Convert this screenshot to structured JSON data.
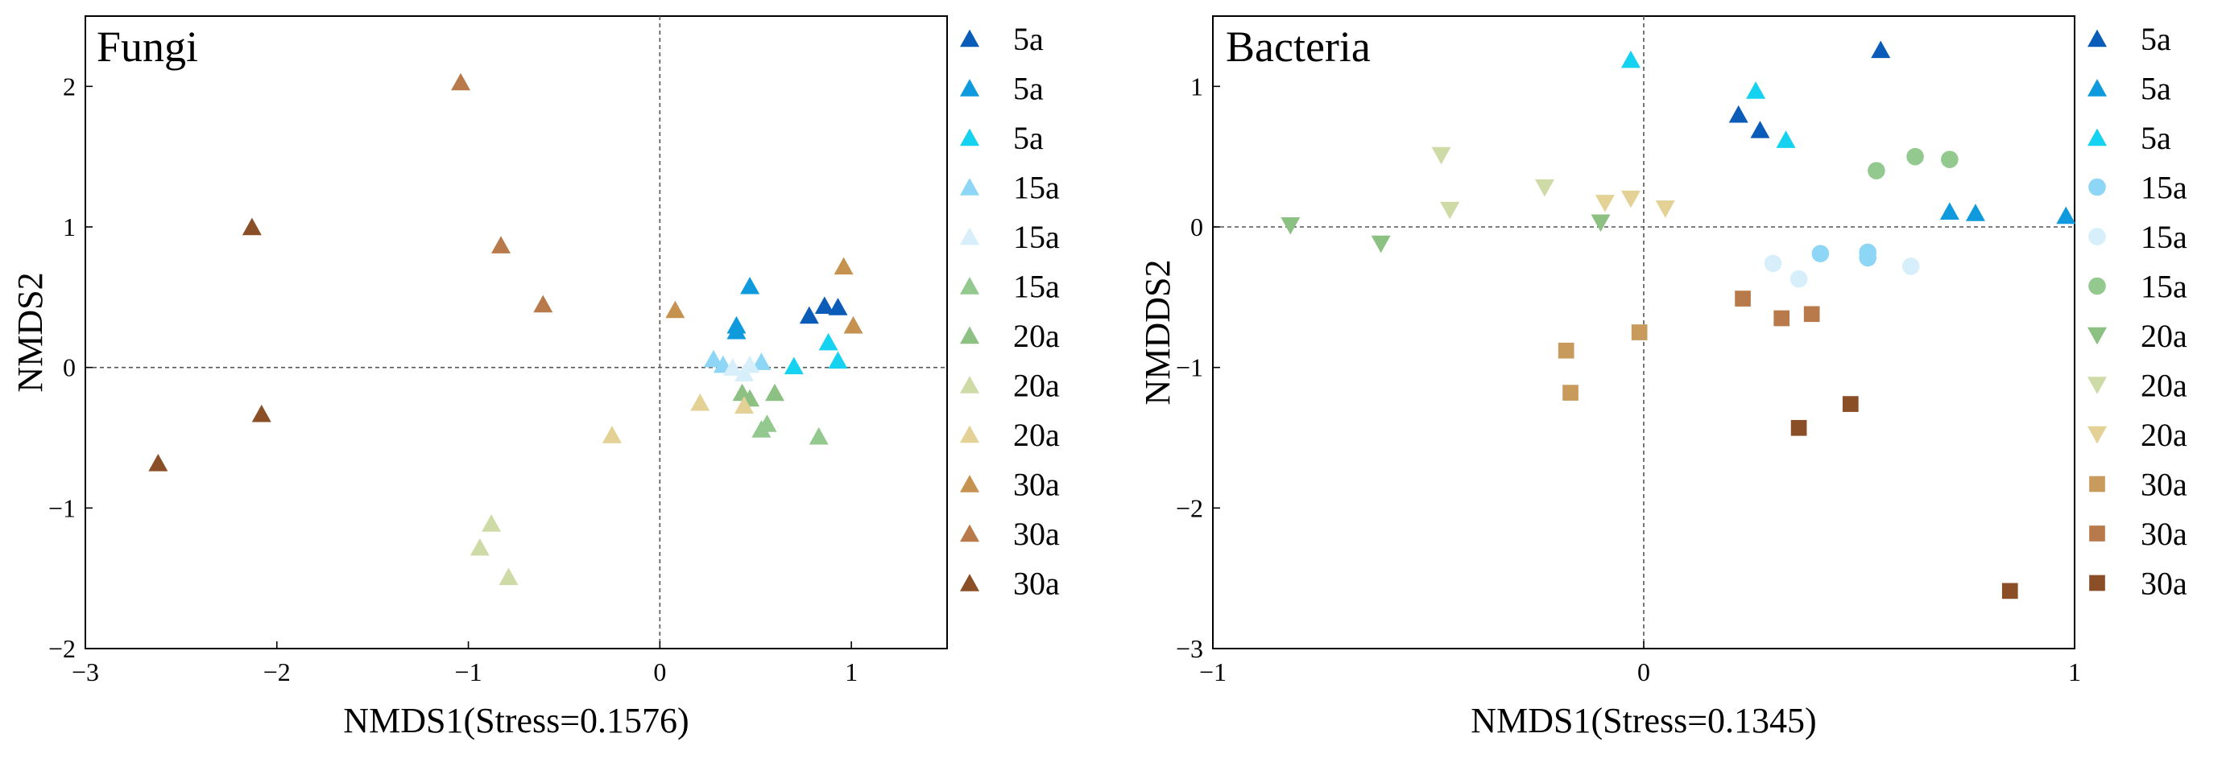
{
  "chart_data": [
    {
      "type": "scatter",
      "title": "Fungi",
      "xlabel": "NMDS1(Stress=0.1576)",
      "ylabel": "NMDS2",
      "xlim": [
        -3,
        1.5
      ],
      "ylim": [
        -2,
        2.5
      ],
      "xticks": [
        -3,
        -2,
        -1,
        0,
        1
      ],
      "yticks": [
        -2,
        -1,
        0,
        1,
        2
      ],
      "xtick_labels": [
        "−3",
        "−2",
        "−1",
        "0",
        "1"
      ],
      "ytick_labels": [
        "−2",
        "−1",
        "0",
        "1",
        "2"
      ],
      "zero_lines": true,
      "legend_position": "right outside",
      "series": [
        {
          "name": "5a",
          "marker": "triangle-up",
          "color": "#0B5CB8",
          "points": [
            [
              0.78,
              0.37
            ],
            [
              0.86,
              0.44
            ],
            [
              0.93,
              0.43
            ]
          ]
        },
        {
          "name": "5a",
          "marker": "triangle-up",
          "color": "#0E9ADC",
          "points": [
            [
              0.4,
              0.3
            ],
            [
              0.4,
              0.26
            ],
            [
              0.47,
              0.58
            ]
          ]
        },
        {
          "name": "5a",
          "marker": "triangle-up",
          "color": "#14D2F0",
          "points": [
            [
              0.7,
              0.01
            ],
            [
              0.88,
              0.18
            ],
            [
              0.93,
              0.05
            ]
          ]
        },
        {
          "name": "15a",
          "marker": "triangle-up",
          "color": "#8ED6F5",
          "points": [
            [
              0.28,
              0.06
            ],
            [
              0.33,
              0.02
            ],
            [
              0.53,
              0.04
            ]
          ]
        },
        {
          "name": "15a",
          "marker": "triangle-up",
          "color": "#D6EFFA",
          "points": [
            [
              0.38,
              0.0
            ],
            [
              0.44,
              -0.04
            ],
            [
              0.47,
              0.02
            ]
          ]
        },
        {
          "name": "15a",
          "marker": "triangle-up",
          "color": "#93C98F",
          "points": [
            [
              0.53,
              -0.44
            ],
            [
              0.56,
              -0.4
            ],
            [
              0.83,
              -0.49
            ]
          ]
        },
        {
          "name": "20a",
          "marker": "triangle-up",
          "color": "#8DC083",
          "points": [
            [
              0.43,
              -0.18
            ],
            [
              0.47,
              -0.22
            ],
            [
              0.6,
              -0.18
            ]
          ]
        },
        {
          "name": "20a",
          "marker": "triangle-up",
          "color": "#CFDBA6",
          "points": [
            [
              -0.94,
              -1.28
            ],
            [
              -0.88,
              -1.11
            ],
            [
              -0.79,
              -1.49
            ]
          ]
        },
        {
          "name": "20a",
          "marker": "triangle-up",
          "color": "#E3D195",
          "points": [
            [
              -0.25,
              -0.48
            ],
            [
              0.21,
              -0.25
            ],
            [
              0.44,
              -0.27
            ]
          ]
        },
        {
          "name": "30a",
          "marker": "triangle-up",
          "color": "#C59250",
          "points": [
            [
              0.08,
              0.41
            ],
            [
              0.96,
              0.72
            ],
            [
              1.01,
              0.3
            ]
          ]
        },
        {
          "name": "30a",
          "marker": "triangle-up",
          "color": "#B97A4B",
          "points": [
            [
              -1.04,
              2.03
            ],
            [
              -0.83,
              0.87
            ],
            [
              -0.61,
              0.45
            ]
          ]
        },
        {
          "name": "30a",
          "marker": "triangle-up",
          "color": "#8A4F27",
          "points": [
            [
              -2.62,
              -0.68
            ],
            [
              -2.13,
              1.0
            ],
            [
              -2.08,
              -0.33
            ]
          ]
        }
      ]
    },
    {
      "type": "scatter",
      "title": "Bacteria",
      "xlabel": "NMDS1(Stress=0.1345)",
      "ylabel": "NMDDS2",
      "xlim": [
        -1,
        1
      ],
      "ylim": [
        -3,
        1.5
      ],
      "xticks": [
        -1,
        0,
        1
      ],
      "yticks": [
        -3,
        -2,
        -1,
        0,
        1
      ],
      "xtick_labels": [
        "−1",
        "0",
        "1"
      ],
      "ytick_labels": [
        "−3",
        "−2",
        "−1",
        "0",
        "1"
      ],
      "zero_lines": true,
      "legend_position": "right outside",
      "series": [
        {
          "name": "5a",
          "marker": "triangle-up",
          "color": "#0B5CB8",
          "points": [
            [
              0.22,
              0.8
            ],
            [
              0.27,
              0.69
            ],
            [
              0.55,
              1.26
            ]
          ]
        },
        {
          "name": "5a",
          "marker": "triangle-up",
          "color": "#0E9ADC",
          "points": [
            [
              0.71,
              0.11
            ],
            [
              0.77,
              0.1
            ],
            [
              0.98,
              0.08
            ]
          ]
        },
        {
          "name": "5a",
          "marker": "triangle-up",
          "color": "#14D2F0",
          "points": [
            [
              -0.03,
              1.19
            ],
            [
              0.26,
              0.97
            ],
            [
              0.33,
              0.62
            ]
          ]
        },
        {
          "name": "15a",
          "marker": "circle",
          "color": "#8ED6F5",
          "points": [
            [
              0.41,
              -0.19
            ],
            [
              0.52,
              -0.18
            ],
            [
              0.52,
              -0.22
            ]
          ]
        },
        {
          "name": "15a",
          "marker": "circle",
          "color": "#D6EFFA",
          "points": [
            [
              0.3,
              -0.26
            ],
            [
              0.36,
              -0.37
            ],
            [
              0.62,
              -0.28
            ]
          ]
        },
        {
          "name": "15a",
          "marker": "circle",
          "color": "#93C98F",
          "points": [
            [
              0.54,
              0.4
            ],
            [
              0.63,
              0.5
            ],
            [
              0.71,
              0.48
            ]
          ]
        },
        {
          "name": "20a",
          "marker": "triangle-down",
          "color": "#8DC083",
          "points": [
            [
              -0.82,
              0.01
            ],
            [
              -0.61,
              -0.12
            ],
            [
              -0.1,
              0.03
            ]
          ]
        },
        {
          "name": "20a",
          "marker": "triangle-down",
          "color": "#CFDBA6",
          "points": [
            [
              -0.47,
              0.51
            ],
            [
              -0.45,
              0.12
            ],
            [
              -0.23,
              0.28
            ]
          ]
        },
        {
          "name": "20a",
          "marker": "triangle-down",
          "color": "#E3D195",
          "points": [
            [
              -0.09,
              0.17
            ],
            [
              -0.03,
              0.2
            ],
            [
              0.05,
              0.13
            ]
          ]
        },
        {
          "name": "30a",
          "marker": "square",
          "color": "#C89B5C",
          "points": [
            [
              -0.18,
              -0.88
            ],
            [
              -0.17,
              -1.18
            ],
            [
              -0.01,
              -0.75
            ]
          ]
        },
        {
          "name": "30a",
          "marker": "square",
          "color": "#B97A4B",
          "points": [
            [
              0.23,
              -0.51
            ],
            [
              0.32,
              -0.65
            ],
            [
              0.39,
              -0.62
            ]
          ]
        },
        {
          "name": "30a",
          "marker": "square",
          "color": "#8A4F27",
          "points": [
            [
              0.36,
              -1.43
            ],
            [
              0.48,
              -1.26
            ],
            [
              0.85,
              -2.59
            ]
          ]
        }
      ]
    }
  ]
}
